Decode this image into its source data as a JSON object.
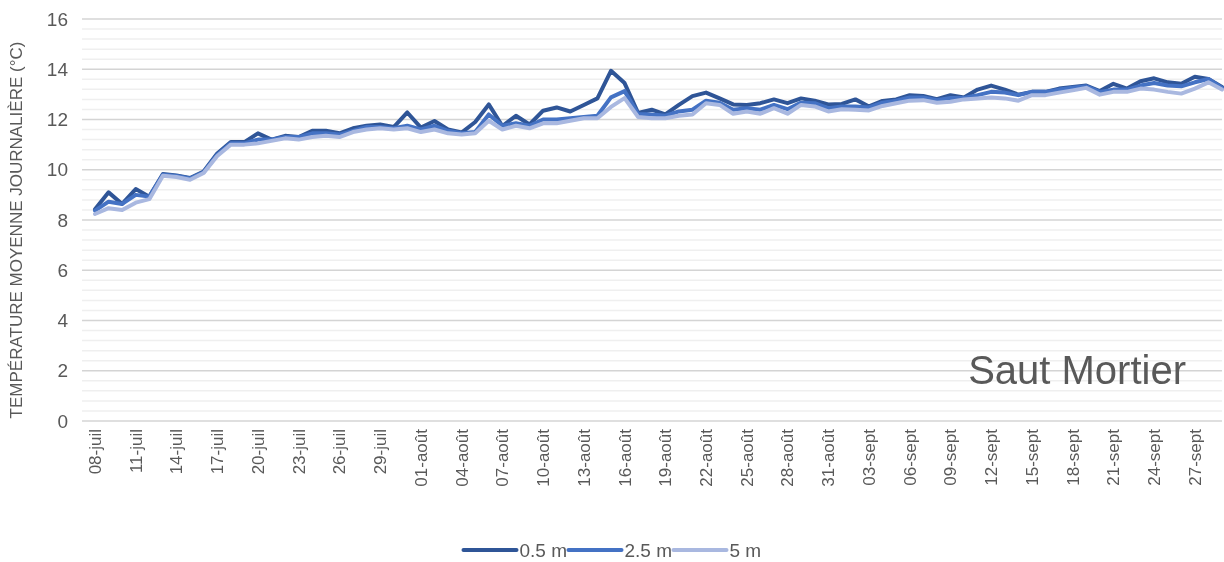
{
  "chart_data": {
    "type": "line",
    "title": "Saut Mortier",
    "ylabel": "TEMPÉRATURE MOYENNE JOURNALIÈRE (°C)",
    "categories": [
      "08-juil",
      null,
      null,
      "11-juil",
      null,
      null,
      "14-juil",
      null,
      null,
      "17-juil",
      null,
      null,
      "20-juil",
      null,
      null,
      "23-juil",
      null,
      null,
      "26-juil",
      null,
      null,
      "29-juil",
      null,
      null,
      "01-août",
      null,
      null,
      "04-août",
      null,
      null,
      "07-août",
      null,
      null,
      "10-août",
      null,
      null,
      "13-août",
      null,
      null,
      "16-août",
      null,
      null,
      "19-août",
      null,
      null,
      "22-août",
      null,
      null,
      "25-août",
      null,
      null,
      "28-août",
      null,
      null,
      "31-août",
      null,
      null,
      "03-sept",
      null,
      null,
      "06-sept",
      null,
      null,
      "09-sept",
      null,
      null,
      "12-sept",
      null,
      null,
      "15-sept",
      null,
      null,
      "18-sept",
      null,
      null,
      "21-sept",
      null,
      null,
      "24-sept",
      null,
      null,
      "27-sept",
      null,
      null
    ],
    "series": [
      {
        "name": "0.5 m",
        "color": "#2f5597",
        "values": [
          8.43,
          9.1,
          8.64,
          9.23,
          8.93,
          9.83,
          9.77,
          9.67,
          9.93,
          10.65,
          11.1,
          11.1,
          11.45,
          11.2,
          11.35,
          11.3,
          11.55,
          11.55,
          11.45,
          11.65,
          11.75,
          11.8,
          11.7,
          12.28,
          11.68,
          11.94,
          11.6,
          11.48,
          11.9,
          12.6,
          11.74,
          12.15,
          11.8,
          12.35,
          12.48,
          12.32,
          12.58,
          12.84,
          13.94,
          13.45,
          12.26,
          12.39,
          12.2,
          12.58,
          12.93,
          13.07,
          12.84,
          12.6,
          12.58,
          12.65,
          12.8,
          12.65,
          12.84,
          12.75,
          12.6,
          12.62,
          12.8,
          12.52,
          12.74,
          12.8,
          12.97,
          12.94,
          12.81,
          12.97,
          12.88,
          13.19,
          13.35,
          13.19,
          12.99,
          13.1,
          13.1,
          13.23,
          13.29,
          13.35,
          13.13,
          13.42,
          13.23,
          13.52,
          13.64,
          13.48,
          13.42,
          13.7,
          13.61,
          13.29
        ]
      },
      {
        "name": "2.5 m",
        "color": "#4472c4",
        "values": [
          8.37,
          8.73,
          8.64,
          9.0,
          8.93,
          9.8,
          9.75,
          9.65,
          9.9,
          10.6,
          11.05,
          11.05,
          11.2,
          11.2,
          11.3,
          11.3,
          11.45,
          11.45,
          11.4,
          11.55,
          11.7,
          11.7,
          11.65,
          11.75,
          11.6,
          11.75,
          11.55,
          11.45,
          11.5,
          12.2,
          11.75,
          11.85,
          11.75,
          12.0,
          12.0,
          12.05,
          12.1,
          12.15,
          12.88,
          13.13,
          12.22,
          12.2,
          12.15,
          12.32,
          12.39,
          12.75,
          12.67,
          12.39,
          12.45,
          12.39,
          12.58,
          12.41,
          12.67,
          12.65,
          12.45,
          12.52,
          12.52,
          12.48,
          12.67,
          12.75,
          12.88,
          12.88,
          12.77,
          12.86,
          12.86,
          12.97,
          13.1,
          13.07,
          12.97,
          13.1,
          13.1,
          13.19,
          13.26,
          13.32,
          13.1,
          13.19,
          13.19,
          13.35,
          13.45,
          13.35,
          13.32,
          13.48,
          13.61,
          13.26
        ]
      },
      {
        "name": "5 m",
        "color": "#a9b8e0",
        "values": [
          8.24,
          8.47,
          8.4,
          8.69,
          8.83,
          9.76,
          9.71,
          9.6,
          9.87,
          10.55,
          11.0,
          11.0,
          11.05,
          11.15,
          11.25,
          11.2,
          11.3,
          11.35,
          11.3,
          11.5,
          11.6,
          11.65,
          11.6,
          11.65,
          11.5,
          11.6,
          11.45,
          11.4,
          11.45,
          11.95,
          11.6,
          11.75,
          11.65,
          11.85,
          11.85,
          11.95,
          12.05,
          12.05,
          12.5,
          12.85,
          12.1,
          12.05,
          12.05,
          12.15,
          12.2,
          12.65,
          12.58,
          12.23,
          12.32,
          12.23,
          12.45,
          12.23,
          12.58,
          12.52,
          12.32,
          12.41,
          12.39,
          12.36,
          12.54,
          12.65,
          12.75,
          12.77,
          12.67,
          12.71,
          12.8,
          12.84,
          12.88,
          12.84,
          12.75,
          12.97,
          12.97,
          13.07,
          13.16,
          13.26,
          12.99,
          13.1,
          13.1,
          13.23,
          13.19,
          13.1,
          13.03,
          13.23,
          13.48,
          13.19
        ]
      }
    ],
    "ylim": [
      0,
      16
    ],
    "yticks": [
      0,
      {
        "value": 0.4,
        "label": null
      },
      {
        "value": 0.8,
        "label": null
      },
      {
        "value": 1.2,
        "label": null
      },
      {
        "value": 1.6,
        "label": null
      },
      2,
      {
        "value": 2.4,
        "label": null
      },
      {
        "value": 2.8,
        "label": null
      },
      {
        "value": 3.2,
        "label": null
      },
      {
        "value": 3.6,
        "label": null
      },
      4,
      {
        "value": 4.4,
        "label": null
      },
      {
        "value": 4.8,
        "label": null
      },
      {
        "value": 5.2,
        "label": null
      },
      {
        "value": 5.6,
        "label": null
      },
      6,
      {
        "value": 6.4,
        "label": null
      },
      {
        "value": 6.8,
        "label": null
      },
      {
        "value": 7.2,
        "label": null
      },
      {
        "value": 7.6,
        "label": null
      },
      8,
      {
        "value": 8.4,
        "label": null
      },
      {
        "value": 8.8,
        "label": null
      },
      {
        "value": 9.2,
        "label": null
      },
      {
        "value": 9.6,
        "label": null
      },
      10,
      {
        "value": 10.4,
        "label": null
      },
      {
        "value": 10.8,
        "label": null
      },
      {
        "value": 11.2,
        "label": null
      },
      {
        "value": 11.6,
        "label": null
      },
      12,
      {
        "value": 12.4,
        "label": null
      },
      {
        "value": 12.8,
        "label": null
      },
      {
        "value": 13.2,
        "label": null
      },
      {
        "value": 13.6,
        "label": null
      },
      14,
      {
        "value": 14.4,
        "label": null
      },
      {
        "value": 14.8,
        "label": null
      },
      {
        "value": 15.2,
        "label": null
      },
      {
        "value": 15.6,
        "label": null
      },
      16
    ],
    "grid": "y",
    "legend": "bottom",
    "line_style": "solid"
  }
}
